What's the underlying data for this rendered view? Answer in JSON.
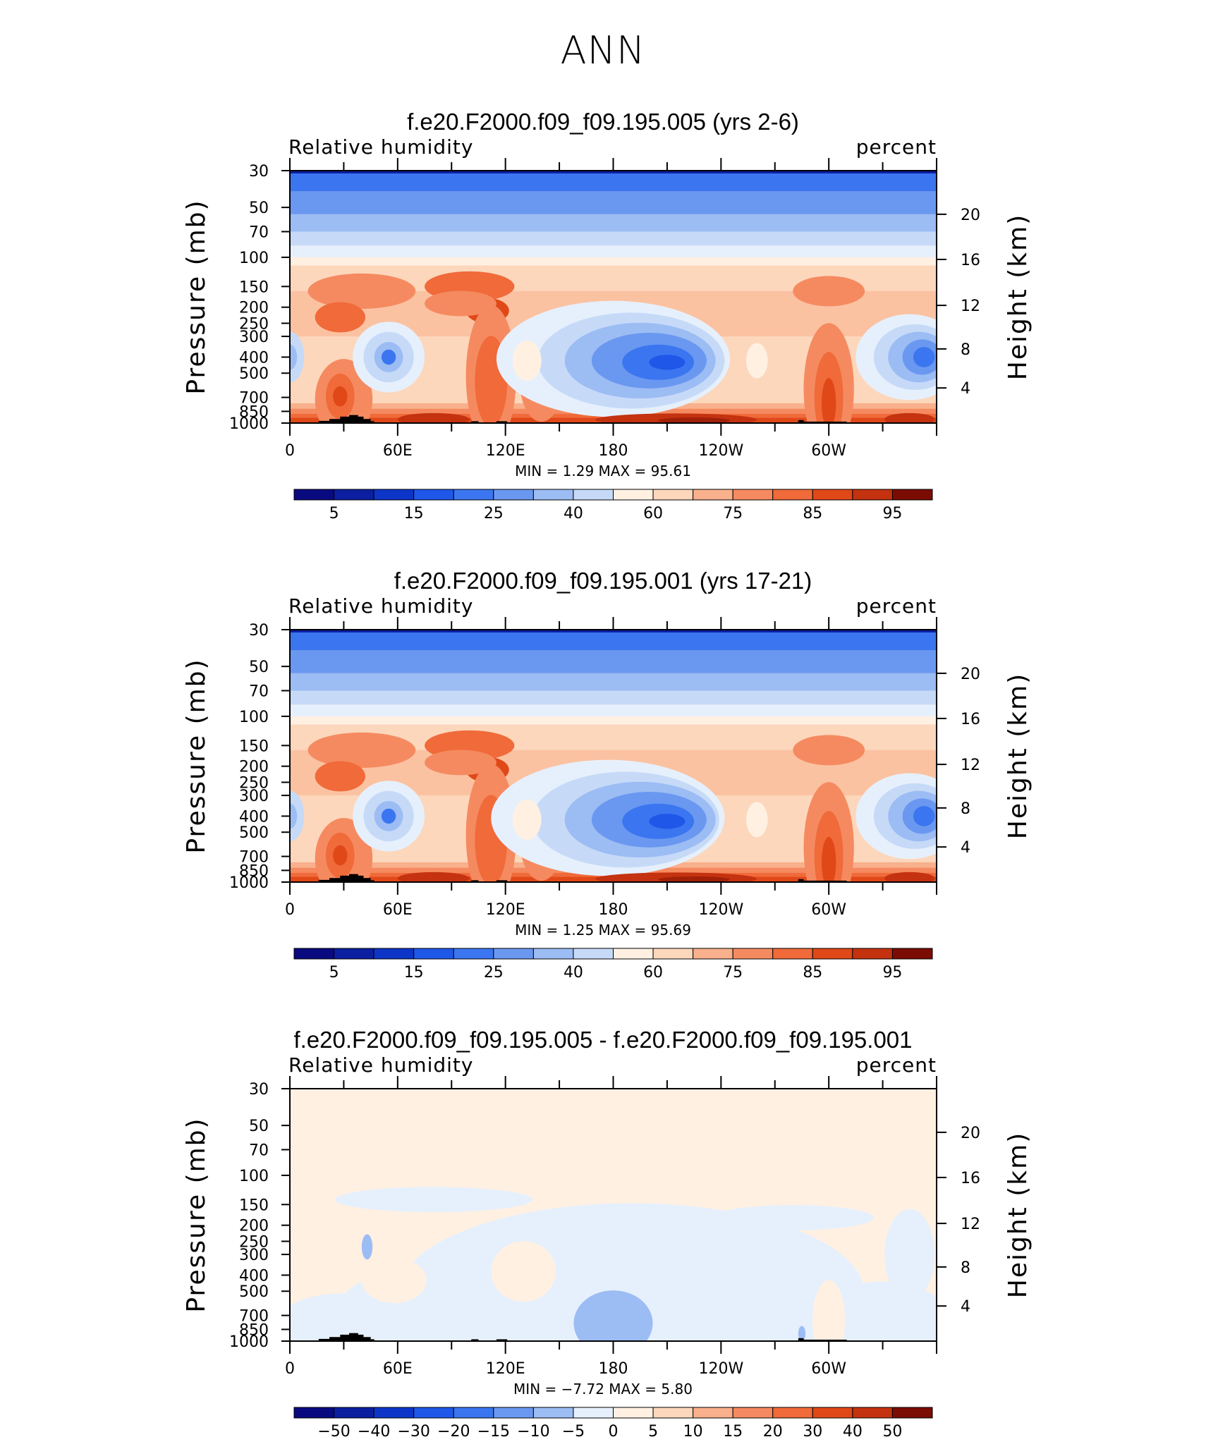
{
  "page": {
    "title": "ANN"
  },
  "colors": {
    "palette": [
      "#0a0a80",
      "#0b1fa0",
      "#0d36c8",
      "#1f58e8",
      "#3b76f0",
      "#6a98f0",
      "#9cbcf4",
      "#c6daf8",
      "#e6f0fc",
      "#fff0e2",
      "#fcd7bc",
      "#f9b08c",
      "#f58a60",
      "#f06a3a",
      "#e04818",
      "#c43210",
      "#a02008",
      "#7a0c04"
    ],
    "land": "#000000"
  },
  "panels": [
    {
      "title": "f.e20.F2000.f09_f09.195.005 (yrs 2-6)",
      "left_label": "Relative humidity",
      "right_label": "percent",
      "stats_label": "MIN =    1.29   MAX =   95.61",
      "kind": "field"
    },
    {
      "title": "f.e20.F2000.f09_f09.195.001 (yrs 17-21)",
      "left_label": "Relative humidity",
      "right_label": "percent",
      "stats_label": "MIN =    1.25   MAX =   95.69",
      "kind": "field"
    },
    {
      "title": "f.e20.F2000.f09_f09.195.005 - f.e20.F2000.f09_f09.195.001",
      "left_label": "Relative humidity",
      "right_label": "percent",
      "stats_label": "MIN =   −7.72   MAX =    5.80",
      "kind": "diff"
    }
  ],
  "chart_data": [
    {
      "type": "heatmap",
      "title": "f.e20.F2000.f09_f09.195.005 (yrs 2-6)",
      "variable": "Relative humidity",
      "units": "percent",
      "ylabel": "Pressure (mb)",
      "y2label": "Height (km)",
      "x_ticks": [
        "0",
        "60E",
        "120E",
        "180",
        "120W",
        "60W"
      ],
      "x_range": [
        0,
        360
      ],
      "y_ticks": [
        "30",
        "50",
        "70",
        "100",
        "150",
        "200",
        "250",
        "300",
        "400",
        "500",
        "700",
        "850",
        "1000"
      ],
      "y_range": [
        30,
        1000
      ],
      "y_scale": "log",
      "y2_ticks": [
        "20",
        "16",
        "12",
        "8",
        "4"
      ],
      "min": 1.29,
      "max": 95.61,
      "colorbar_labels": [
        "5",
        "15",
        "25",
        "40",
        "60",
        "75",
        "85",
        "95"
      ],
      "legend_position": "bottom"
    },
    {
      "type": "heatmap",
      "title": "f.e20.F2000.f09_f09.195.001 (yrs 17-21)",
      "variable": "Relative humidity",
      "units": "percent",
      "ylabel": "Pressure (mb)",
      "y2label": "Height (km)",
      "x_ticks": [
        "0",
        "60E",
        "120E",
        "180",
        "120W",
        "60W"
      ],
      "x_range": [
        0,
        360
      ],
      "y_ticks": [
        "30",
        "50",
        "70",
        "100",
        "150",
        "200",
        "250",
        "300",
        "400",
        "500",
        "700",
        "850",
        "1000"
      ],
      "y_range": [
        30,
        1000
      ],
      "y_scale": "log",
      "y2_ticks": [
        "20",
        "16",
        "12",
        "8",
        "4"
      ],
      "min": 1.25,
      "max": 95.69,
      "colorbar_labels": [
        "5",
        "15",
        "25",
        "40",
        "60",
        "75",
        "85",
        "95"
      ],
      "legend_position": "bottom"
    },
    {
      "type": "heatmap",
      "title": "f.e20.F2000.f09_f09.195.005 - f.e20.F2000.f09_f09.195.001",
      "variable": "Relative humidity",
      "units": "percent",
      "ylabel": "Pressure (mb)",
      "y2label": "Height (km)",
      "x_ticks": [
        "0",
        "60E",
        "120E",
        "180",
        "120W",
        "60W"
      ],
      "x_range": [
        0,
        360
      ],
      "y_ticks": [
        "30",
        "50",
        "70",
        "100",
        "150",
        "200",
        "250",
        "300",
        "400",
        "500",
        "700",
        "850",
        "1000"
      ],
      "y_range": [
        30,
        1000
      ],
      "y_scale": "log",
      "y2_ticks": [
        "20",
        "16",
        "12",
        "8",
        "4"
      ],
      "min": -7.72,
      "max": 5.8,
      "colorbar_labels": [
        "−50",
        "−40",
        "−30",
        "−20",
        "−15",
        "−10",
        "−5",
        "0",
        "5",
        "10",
        "15",
        "20",
        "30",
        "40",
        "50"
      ],
      "legend_position": "bottom"
    }
  ]
}
